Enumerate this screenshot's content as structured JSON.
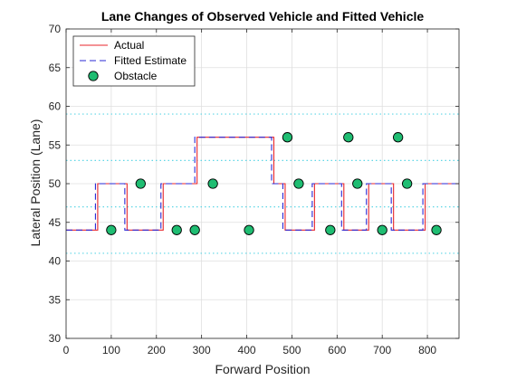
{
  "chart_data": {
    "type": "line",
    "title": "Lane Changes of Observed Vehicle and Fitted Vehicle",
    "xlabel": "Forward Position",
    "ylabel": "Lateral Position (Lane)",
    "xlim": [
      0,
      870
    ],
    "ylim": [
      30,
      70
    ],
    "xticks": [
      0,
      100,
      200,
      300,
      400,
      500,
      600,
      700,
      800
    ],
    "yticks": [
      30,
      35,
      40,
      45,
      50,
      55,
      60,
      65,
      70
    ],
    "grid": true,
    "lane_lines": [
      41,
      47,
      53,
      59
    ],
    "legend": {
      "position": "top-left"
    },
    "series": [
      {
        "name": "Actual",
        "kind": "line",
        "style": "solid",
        "color": "#e8262b",
        "x": [
          0,
          70,
          70,
          135,
          135,
          215,
          215,
          290,
          290,
          460,
          460,
          485,
          485,
          550,
          550,
          615,
          615,
          670,
          670,
          725,
          725,
          795,
          795,
          870
        ],
        "y": [
          44,
          44,
          50,
          50,
          44,
          44,
          50,
          50,
          56,
          56,
          50,
          50,
          44,
          44,
          50,
          50,
          44,
          44,
          50,
          50,
          44,
          44,
          50,
          50
        ]
      },
      {
        "name": "Fitted Estimate",
        "kind": "line",
        "style": "dashed",
        "color": "#2a2ad6",
        "x": [
          0,
          65,
          65,
          130,
          130,
          210,
          210,
          285,
          285,
          455,
          455,
          480,
          480,
          545,
          545,
          610,
          610,
          665,
          665,
          720,
          720,
          790,
          790,
          870
        ],
        "y": [
          44,
          44,
          50,
          50,
          44,
          44,
          50,
          50,
          56,
          56,
          50,
          50,
          44,
          44,
          50,
          50,
          44,
          44,
          50,
          50,
          44,
          44,
          50,
          50
        ]
      },
      {
        "name": "Obstacle",
        "kind": "scatter",
        "color": "#1fbd72",
        "edge_color": "#000000",
        "x": [
          100,
          165,
          245,
          285,
          325,
          405,
          490,
          515,
          585,
          625,
          645,
          700,
          735,
          755,
          820
        ],
        "y": [
          44,
          50,
          44,
          44,
          50,
          44,
          56,
          50,
          44,
          56,
          50,
          44,
          56,
          50,
          44
        ]
      }
    ]
  }
}
